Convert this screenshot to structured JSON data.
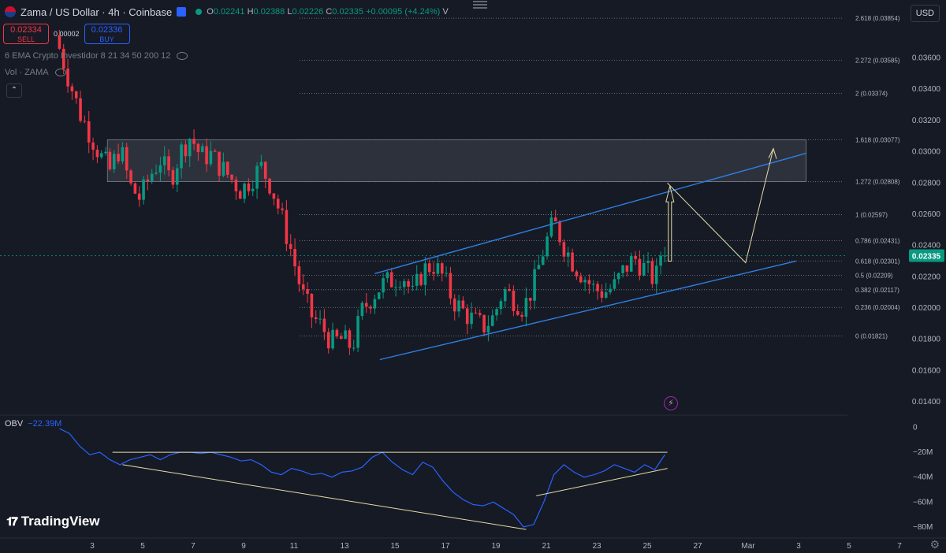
{
  "header": {
    "symbol": "Zama / US Dollar · 4h · Coinbase",
    "o": "0.02241",
    "h": "0.02388",
    "l": "0.02226",
    "c": "0.02335",
    "change": "+0.00095 (+4.24%)",
    "v_label": "V"
  },
  "trade": {
    "sell_price": "0.02334",
    "sell_label": "SELL",
    "buy_price": "0.02336",
    "buy_label": "BUY",
    "spread": "0.00002"
  },
  "indicators": {
    "ema": "6 EMA Crypto Investidor 8 21 34 50 200 12",
    "vol": "Vol · ZAMA"
  },
  "currency": "USD",
  "brand": "TradingView",
  "obv_legend": {
    "name": "OBV",
    "value": "−22.39M"
  },
  "chart_data": {
    "type": "candlestick",
    "price_axis": {
      "ylim": [
        0.0135,
        0.0392
      ],
      "ticks": [
        "0.03600",
        "0.03400",
        "0.03200",
        "0.03000",
        "0.02800",
        "0.02600",
        "0.02400",
        "0.02200",
        "0.02000",
        "0.01800",
        "0.01600",
        "0.01400"
      ],
      "last_price": "0.02335"
    },
    "x_ticks": [
      "3",
      "5",
      "7",
      "9",
      "11",
      "13",
      "15",
      "17",
      "19",
      "21",
      "23",
      "25",
      "27",
      "Mar",
      "3",
      "5",
      "7"
    ],
    "x_tick_days": [
      3,
      5,
      7,
      9,
      11,
      13,
      15,
      17,
      19,
      21,
      23,
      25,
      27,
      29,
      31,
      33,
      35
    ],
    "fib_levels": [
      {
        "label": "2.618 (0.03854)",
        "price": 0.03854
      },
      {
        "label": "2.272 (0.03585)",
        "price": 0.03585
      },
      {
        "label": "2 (0.03374)",
        "price": 0.03374
      },
      {
        "label": "1.618 (0.03077)",
        "price": 0.03077
      },
      {
        "label": "1.272 (0.02808)",
        "price": 0.02808
      },
      {
        "label": "1 (0.02597)",
        "price": 0.02597
      },
      {
        "label": "0.786 (0.02431)",
        "price": 0.02431
      },
      {
        "label": "0.618 (0.02301)",
        "price": 0.02301
      },
      {
        "label": "0.5 (0.02209)",
        "price": 0.02209
      },
      {
        "label": "0.382 (0.02117)",
        "price": 0.02117
      },
      {
        "label": "0.236 (0.02004)",
        "price": 0.02004
      },
      {
        "label": "0 (0.01821)",
        "price": 0.01821
      }
    ],
    "zone": {
      "from_day": 3.6,
      "to_day": 31.3,
      "top": 0.03077,
      "bottom": 0.02808
    },
    "channel": {
      "upper": [
        [
          14.2,
          0.0222
        ],
        [
          31.3,
          0.0299
        ]
      ],
      "lower": [
        [
          14.4,
          0.0167
        ],
        [
          30.9,
          0.023
        ]
      ]
    },
    "projection": [
      [
        25.8,
        0.028
      ],
      [
        28.9,
        0.0229
      ],
      [
        30.0,
        0.0302
      ]
    ],
    "arrow": {
      "day": 25.9,
      "from": 0.023,
      "to": 0.0278
    },
    "path": [
      [
        1.7,
        0.0366
      ],
      [
        2.1,
        0.0345
      ],
      [
        2.5,
        0.0325
      ],
      [
        2.9,
        0.0312
      ],
      [
        3.3,
        0.0298
      ],
      [
        3.7,
        0.0288
      ],
      [
        4.1,
        0.0303
      ],
      [
        4.5,
        0.0278
      ],
      [
        4.9,
        0.027
      ],
      [
        5.3,
        0.0285
      ],
      [
        5.7,
        0.0295
      ],
      [
        6.1,
        0.0282
      ],
      [
        6.5,
        0.03
      ],
      [
        6.9,
        0.031
      ],
      [
        7.3,
        0.0297
      ],
      [
        7.7,
        0.0298
      ],
      [
        8.1,
        0.029
      ],
      [
        8.5,
        0.0283
      ],
      [
        8.9,
        0.0275
      ],
      [
        9.3,
        0.0283
      ],
      [
        9.7,
        0.029
      ],
      [
        10.1,
        0.0278
      ],
      [
        10.5,
        0.0258
      ],
      [
        10.9,
        0.0236
      ],
      [
        11.3,
        0.021
      ],
      [
        11.7,
        0.0195
      ],
      [
        12.1,
        0.0188
      ],
      [
        12.5,
        0.0178
      ],
      [
        12.9,
        0.018
      ],
      [
        13.3,
        0.0175
      ],
      [
        13.7,
        0.0198
      ],
      [
        14.1,
        0.0208
      ],
      [
        14.5,
        0.0215
      ],
      [
        14.9,
        0.0218
      ],
      [
        15.3,
        0.0222
      ],
      [
        15.7,
        0.0208
      ],
      [
        16.1,
        0.0224
      ],
      [
        16.5,
        0.0228
      ],
      [
        16.9,
        0.022
      ],
      [
        17.3,
        0.0205
      ],
      [
        17.7,
        0.0198
      ],
      [
        18.1,
        0.0192
      ],
      [
        18.5,
        0.0188
      ],
      [
        18.9,
        0.0194
      ],
      [
        19.3,
        0.0212
      ],
      [
        19.7,
        0.0206
      ],
      [
        20.1,
        0.02
      ],
      [
        20.5,
        0.0215
      ],
      [
        20.9,
        0.0238
      ],
      [
        21.3,
        0.0255
      ],
      [
        21.7,
        0.024
      ],
      [
        22.1,
        0.0228
      ],
      [
        22.5,
        0.022
      ],
      [
        22.9,
        0.0212
      ],
      [
        23.3,
        0.021
      ],
      [
        23.7,
        0.0214
      ],
      [
        24.1,
        0.0225
      ],
      [
        24.5,
        0.0232
      ],
      [
        24.9,
        0.0225
      ],
      [
        25.3,
        0.0218
      ],
      [
        25.7,
        0.02335
      ]
    ],
    "obv_axis": {
      "ylim": [
        -87,
        6
      ],
      "ticks": [
        "0",
        "−20M",
        "−40M",
        "−60M",
        "−80M"
      ],
      "tick_values": [
        0,
        -20,
        -40,
        -60,
        -80
      ]
    },
    "obv": [
      [
        1.7,
        -1
      ],
      [
        2.1,
        -5
      ],
      [
        2.5,
        -15
      ],
      [
        2.9,
        -22
      ],
      [
        3.3,
        -20
      ],
      [
        3.7,
        -26
      ],
      [
        4.1,
        -30
      ],
      [
        4.5,
        -26
      ],
      [
        4.9,
        -24
      ],
      [
        5.3,
        -22
      ],
      [
        5.7,
        -26
      ],
      [
        6.1,
        -22
      ],
      [
        6.5,
        -20
      ],
      [
        6.9,
        -20
      ],
      [
        7.3,
        -21
      ],
      [
        7.7,
        -20
      ],
      [
        8.1,
        -22
      ],
      [
        8.5,
        -24
      ],
      [
        8.9,
        -27
      ],
      [
        9.3,
        -26
      ],
      [
        9.7,
        -30
      ],
      [
        10.1,
        -36
      ],
      [
        10.5,
        -38
      ],
      [
        10.9,
        -33
      ],
      [
        11.3,
        -35
      ],
      [
        11.7,
        -38
      ],
      [
        12.1,
        -37
      ],
      [
        12.5,
        -40
      ],
      [
        12.9,
        -36
      ],
      [
        13.3,
        -35
      ],
      [
        13.7,
        -32
      ],
      [
        14.1,
        -24
      ],
      [
        14.5,
        -20
      ],
      [
        14.9,
        -28
      ],
      [
        15.3,
        -34
      ],
      [
        15.7,
        -38
      ],
      [
        16.1,
        -28
      ],
      [
        16.5,
        -32
      ],
      [
        16.9,
        -43
      ],
      [
        17.3,
        -52
      ],
      [
        17.7,
        -58
      ],
      [
        18.1,
        -62
      ],
      [
        18.5,
        -63
      ],
      [
        18.9,
        -60
      ],
      [
        19.3,
        -65
      ],
      [
        19.7,
        -70
      ],
      [
        20.1,
        -80
      ],
      [
        20.5,
        -78
      ],
      [
        20.9,
        -60
      ],
      [
        21.3,
        -38
      ],
      [
        21.7,
        -30
      ],
      [
        22.1,
        -36
      ],
      [
        22.5,
        -40
      ],
      [
        22.9,
        -38
      ],
      [
        23.3,
        -35
      ],
      [
        23.7,
        -30
      ],
      [
        24.1,
        -33
      ],
      [
        24.5,
        -36
      ],
      [
        24.9,
        -30
      ],
      [
        25.3,
        -34
      ],
      [
        25.7,
        -22
      ]
    ],
    "obv_lines": [
      [
        [
          3.8,
          -20
        ],
        [
          25.8,
          -20
        ]
      ],
      [
        [
          4.2,
          -30
        ],
        [
          20.2,
          -82
        ]
      ],
      [
        [
          20.6,
          -55
        ],
        [
          25.8,
          -33
        ]
      ]
    ]
  },
  "colors": {
    "up": "#089981",
    "down": "#f23645",
    "channel": "#2e7fe0",
    "fib": "#7e8394",
    "obv": "#2962ff",
    "note": "#e5dca8"
  }
}
